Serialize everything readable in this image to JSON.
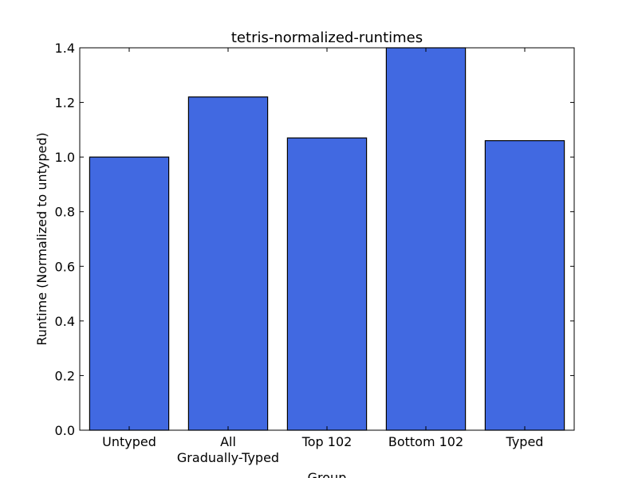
{
  "chart_data": {
    "type": "bar",
    "title": "tetris-normalized-runtimes",
    "xlabel": "Group",
    "ylabel": "Runtime (Normalized to untyped)",
    "categories": [
      [
        "Untyped"
      ],
      [
        "All",
        "Gradually-Typed"
      ],
      [
        "Top 102"
      ],
      [
        "Bottom 102"
      ],
      [
        "Typed"
      ]
    ],
    "values": [
      1.0,
      1.22,
      1.07,
      1.4,
      1.06
    ],
    "ylim": [
      0,
      1.4
    ],
    "yticks": [
      "0.0",
      "0.2",
      "0.4",
      "0.6",
      "0.8",
      "1.0",
      "1.2",
      "1.4"
    ],
    "grid": false,
    "bar_color": "#4169e1"
  }
}
